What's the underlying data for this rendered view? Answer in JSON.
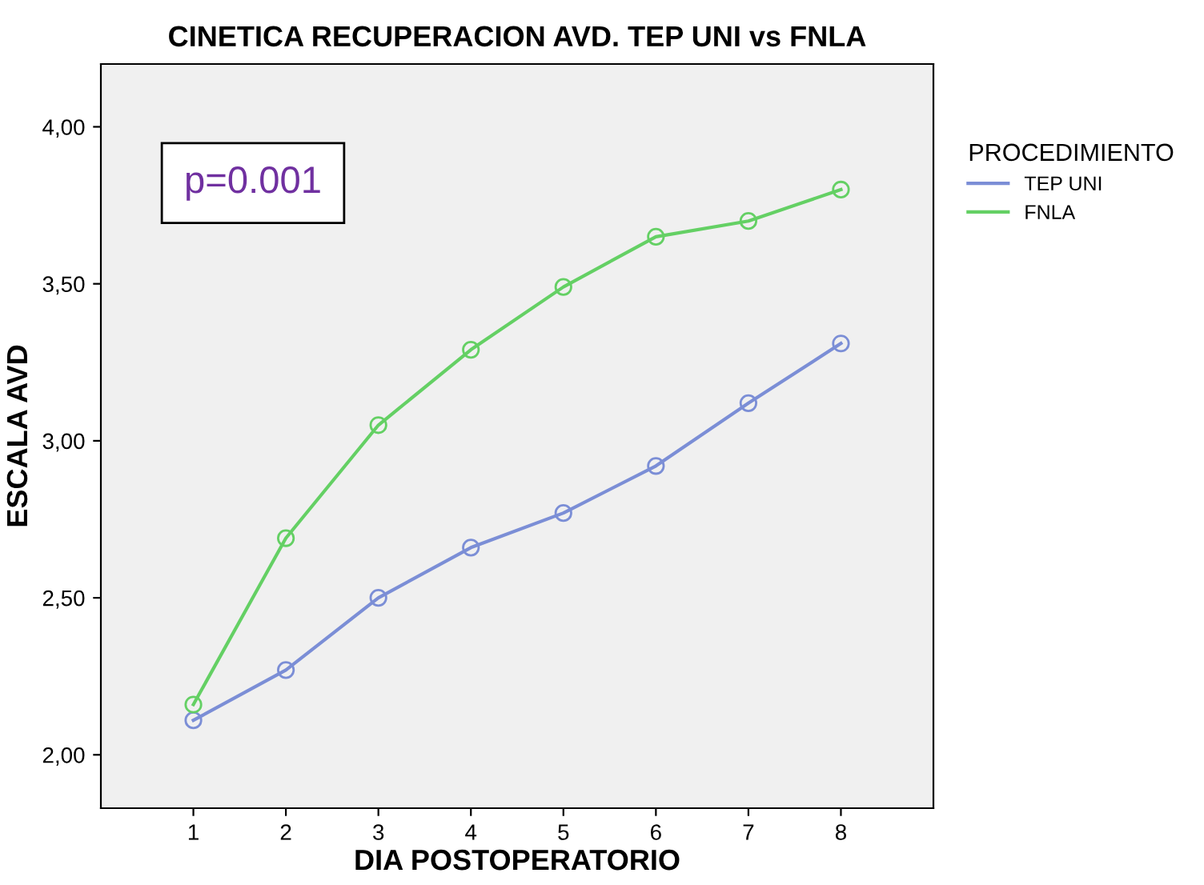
{
  "chart_data": {
    "type": "line",
    "title": "CINETICA RECUPERACION AVD. TEP UNI vs FNLA",
    "xlabel": "DIA POSTOPERATORIO",
    "ylabel": "ESCALA AVD",
    "legend_title": "PROCEDIMIENTO",
    "x": [
      1,
      2,
      3,
      4,
      5,
      6,
      7,
      8
    ],
    "series": [
      {
        "name": "TEP UNI",
        "color": "#7b8ed6",
        "values": [
          2.11,
          2.27,
          2.5,
          2.66,
          2.77,
          2.92,
          3.12,
          3.31
        ]
      },
      {
        "name": "FNLA",
        "color": "#64d064",
        "values": [
          2.16,
          2.69,
          3.05,
          3.29,
          3.49,
          3.65,
          3.7,
          3.8
        ]
      }
    ],
    "xlim": [
      0,
      9
    ],
    "ylim": [
      1.83,
      4.2
    ],
    "xticks": [
      1,
      2,
      3,
      4,
      5,
      6,
      7,
      8
    ],
    "yticks": [
      {
        "value": 2,
        "label": "2,00"
      },
      {
        "value": 2.5,
        "label": "2,50"
      },
      {
        "value": 3,
        "label": "3,00"
      },
      {
        "value": 3.5,
        "label": "3,50"
      },
      {
        "value": 4,
        "label": "4,00"
      }
    ],
    "annotations": [
      "p=0.001"
    ],
    "marker": "circle",
    "line_style": "solid",
    "grid": false,
    "legend": "right"
  }
}
